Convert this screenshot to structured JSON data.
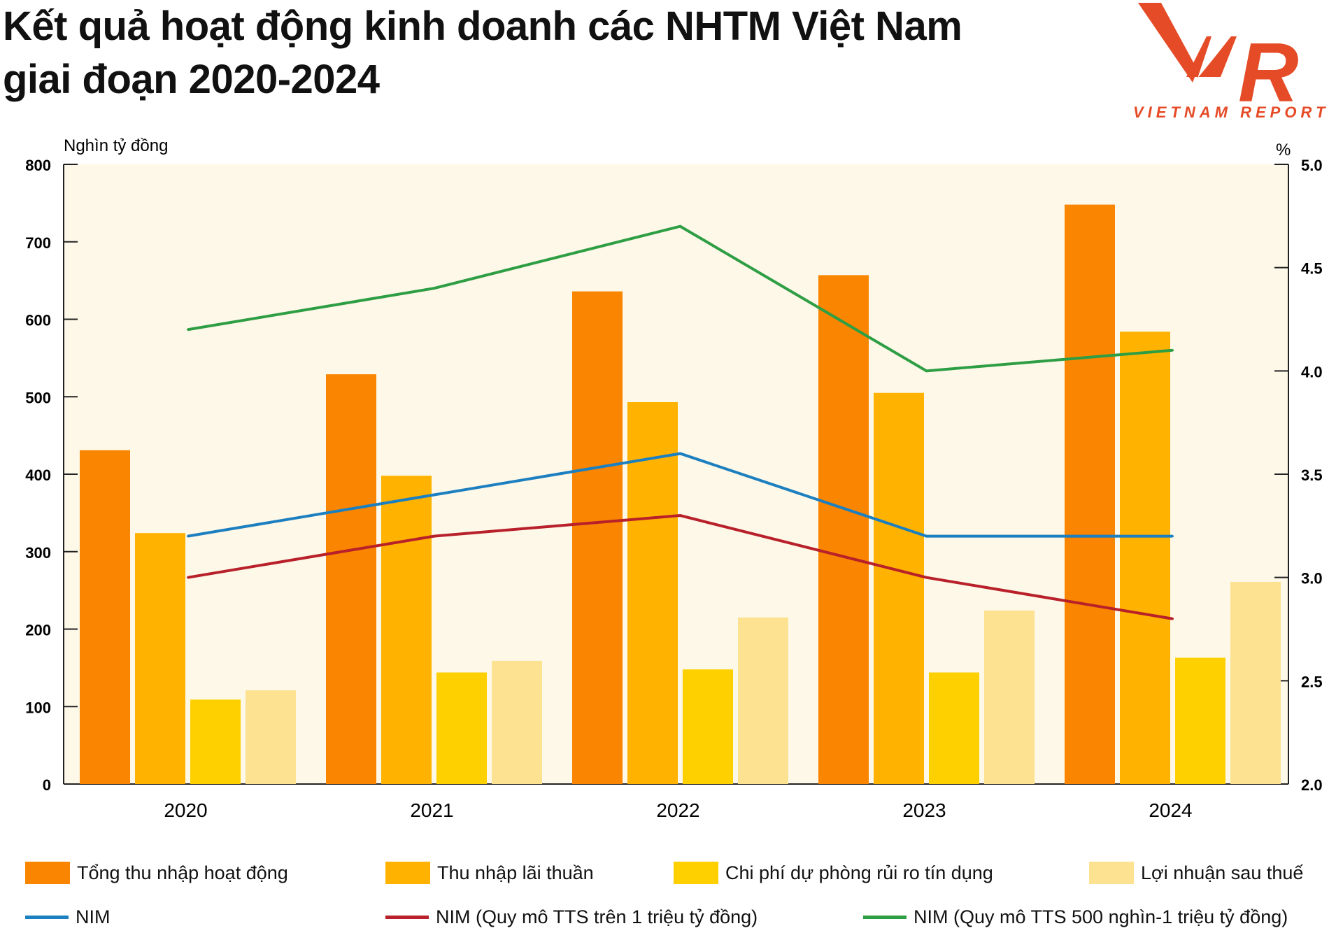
{
  "title_lines": [
    "Kết quả hoạt động kinh doanh các NHTM Việt Nam",
    "giai đoạn 2020-2024"
  ],
  "logo": {
    "letters": "VNR",
    "text": "VIETNAM REPORT",
    "color": "#e54b26"
  },
  "chart_data": {
    "type": "bar",
    "title": "Kết quả hoạt động kinh doanh các NHTM Việt Nam giai đoạn 2020-2024",
    "categories": [
      "2020",
      "2021",
      "2022",
      "2023",
      "2024"
    ],
    "y_left": {
      "label": "Nghìn tỷ đồng",
      "min": 0,
      "max": 800,
      "ticks": [
        0,
        100,
        200,
        300,
        400,
        500,
        600,
        700,
        800
      ]
    },
    "y_right": {
      "label": "%",
      "min": 2.0,
      "max": 5.0,
      "ticks": [
        "2.0",
        "2.5",
        "3.0",
        "3.5",
        "4.0",
        "4.5",
        "5.0"
      ]
    },
    "grid": false,
    "legend_position": "bottom",
    "bar_series": [
      {
        "name": "Tổng thu nhập hoạt động",
        "color": "#f98500",
        "values": [
          431,
          529,
          636,
          657,
          748
        ]
      },
      {
        "name": "Thu nhập lãi thuần",
        "color": "#ffb300",
        "values": [
          324,
          398,
          493,
          505,
          584
        ]
      },
      {
        "name": "Chi phí dự phòng rủi ro tín dụng",
        "color": "#ffd000",
        "values": [
          109,
          144,
          148,
          144,
          163
        ]
      },
      {
        "name": "Lợi nhuận sau thuế",
        "color": "#fde291",
        "values": [
          121,
          159,
          215,
          224,
          261
        ]
      }
    ],
    "line_series": [
      {
        "name": "NIM",
        "color": "#1c7fc0",
        "axis": "right",
        "values": [
          3.2,
          3.4,
          3.6,
          3.2,
          3.2
        ]
      },
      {
        "name": "NIM (Quy mô TTS trên 1 triệu tỷ đồng)",
        "color": "#b8202a",
        "axis": "right",
        "values": [
          3.0,
          3.2,
          3.3,
          3.0,
          2.8
        ]
      },
      {
        "name": "NIM (Quy mô TTS 500 nghìn-1 triệu tỷ đồng)",
        "color": "#2e9e44",
        "axis": "right",
        "values": [
          4.2,
          4.4,
          4.7,
          4.0,
          4.1
        ]
      }
    ],
    "plot_background": "#fdf8e8"
  }
}
